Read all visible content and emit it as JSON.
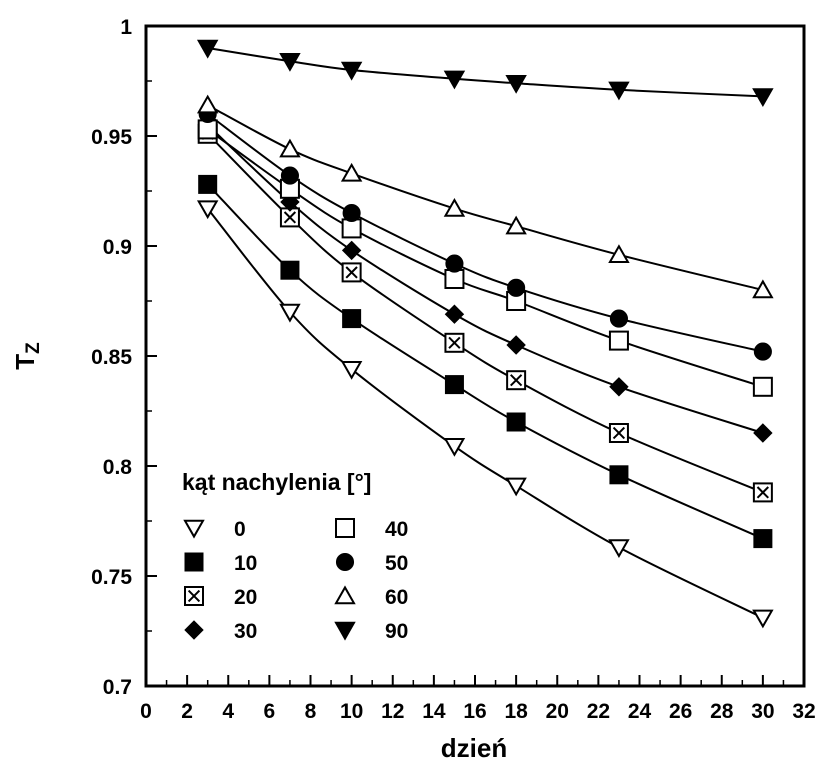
{
  "chart_data": {
    "type": "scatter",
    "title": "",
    "xlabel": "dzień",
    "ylabel": "T",
    "ylabel_subscript": "Z",
    "xlim": [
      0,
      32
    ],
    "ylim": [
      0.7,
      1
    ],
    "x_ticks": [
      0,
      2,
      4,
      6,
      8,
      10,
      12,
      14,
      16,
      18,
      20,
      22,
      24,
      26,
      28,
      30,
      32
    ],
    "y_ticks": [
      0.7,
      0.75,
      0.8,
      0.85,
      0.9,
      0.95,
      1
    ],
    "y_tick_labels": [
      "0.7",
      "0.75",
      "0.8",
      "0.85",
      "0.9",
      "0.95",
      "1"
    ],
    "grid": false,
    "legend_title": "kąt nachylenia [°]",
    "legend_position": "bottom-left",
    "x": [
      3,
      7,
      10,
      15,
      18,
      23,
      30
    ],
    "series": [
      {
        "name": "0",
        "marker": "triangle-down-open",
        "values": [
          0.917,
          0.87,
          0.844,
          0.809,
          0.791,
          0.763,
          0.731
        ]
      },
      {
        "name": "10",
        "marker": "square-filled",
        "values": [
          0.928,
          0.889,
          0.867,
          0.837,
          0.82,
          0.796,
          0.767
        ]
      },
      {
        "name": "20",
        "marker": "square-x",
        "values": [
          0.951,
          0.913,
          0.888,
          0.856,
          0.839,
          0.815,
          0.788
        ]
      },
      {
        "name": "30",
        "marker": "diamond-filled",
        "values": [
          0.955,
          0.92,
          0.898,
          0.869,
          0.855,
          0.836,
          0.815
        ]
      },
      {
        "name": "40",
        "marker": "square-open",
        "values": [
          0.953,
          0.926,
          0.908,
          0.885,
          0.875,
          0.857,
          0.836
        ]
      },
      {
        "name": "50",
        "marker": "circle-filled",
        "values": [
          0.96,
          0.932,
          0.915,
          0.892,
          0.881,
          0.867,
          0.852
        ]
      },
      {
        "name": "60",
        "marker": "triangle-up-open",
        "values": [
          0.964,
          0.944,
          0.933,
          0.917,
          0.909,
          0.896,
          0.88
        ]
      },
      {
        "name": "90",
        "marker": "triangle-down-filled",
        "values": [
          0.99,
          0.984,
          0.98,
          0.976,
          0.974,
          0.971,
          0.968
        ]
      }
    ]
  }
}
